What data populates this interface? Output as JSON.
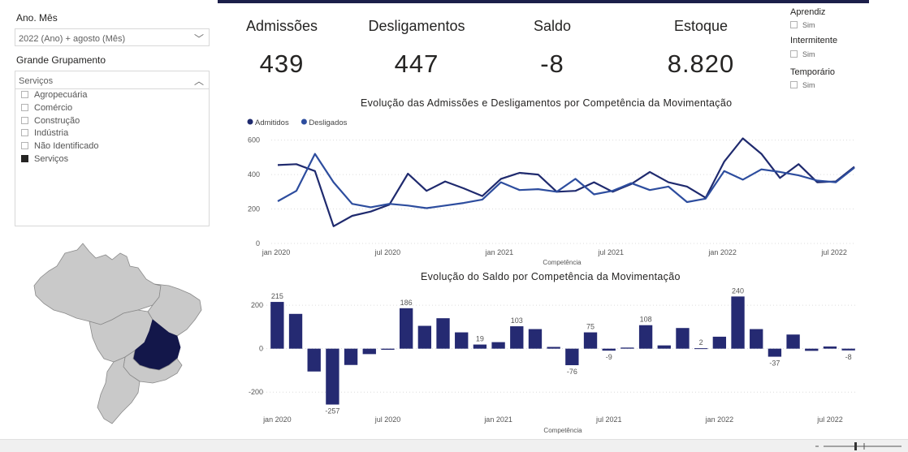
{
  "filters": {
    "month_label": "Ano. Mês",
    "month_value": "2022 (Ano) + agosto (Mês)",
    "group_label": "Grande Grupamento",
    "group_value": "Serviços",
    "group_options": [
      {
        "label": "Agropecuária",
        "checked": false
      },
      {
        "label": "Comércio",
        "checked": false
      },
      {
        "label": "Construção",
        "checked": false
      },
      {
        "label": "Indústria",
        "checked": false
      },
      {
        "label": "Não Identificado",
        "checked": false
      },
      {
        "label": "Serviços",
        "checked": true
      }
    ]
  },
  "kpis": {
    "admissoes_label": "Admissões",
    "admissoes_value": "439",
    "desligamentos_label": "Desligamentos",
    "desligamentos_value": "447",
    "saldo_label": "Saldo",
    "saldo_value": "-8",
    "estoque_label": "Estoque",
    "estoque_value": "8.820"
  },
  "slicers": {
    "aprendiz": "Aprendiz",
    "aprendiz_opt": "Sim",
    "intermitente": "Intermitente",
    "intermitente_opt": "Sim",
    "temporario": "Temporário",
    "temporario_opt": "Sim"
  },
  "map": {
    "highlight_color": "#13174a",
    "base_color": "#c8c8c8"
  },
  "colors": {
    "admitidos": "#1f2a6e",
    "desligados": "#2d4d9e",
    "bar": "#252a72"
  },
  "chart_data": [
    {
      "type": "line",
      "title": "Evolução das Admissões e Desligamentos por Competência da Movimentação",
      "xlabel": "Competência",
      "ylabel": "",
      "x_ticks": [
        "jan 2020",
        "jul 2020",
        "jan 2021",
        "jul 2021",
        "jan 2022",
        "jul 2022"
      ],
      "y_ticks": [
        "0",
        "200",
        "400",
        "600"
      ],
      "ylim": [
        0,
        650
      ],
      "legend_position": "top-left",
      "series": [
        {
          "name": "Admitidos",
          "values": [
            455,
            460,
            420,
            100,
            160,
            185,
            225,
            405,
            305,
            360,
            320,
            275,
            375,
            410,
            400,
            300,
            305,
            355,
            300,
            345,
            415,
            355,
            330,
            265,
            475,
            610,
            520,
            380,
            460,
            355,
            360,
            445
          ]
        },
        {
          "name": "Desligados",
          "values": [
            245,
            305,
            520,
            355,
            230,
            210,
            230,
            220,
            205,
            220,
            235,
            255,
            355,
            310,
            315,
            300,
            375,
            285,
            305,
            350,
            310,
            330,
            240,
            260,
            420,
            370,
            430,
            415,
            395,
            365,
            355,
            440
          ]
        }
      ]
    },
    {
      "type": "bar",
      "title": "Evolução do Saldo por Competência da Movimentação",
      "xlabel": "Competência",
      "ylabel": "",
      "x_ticks": [
        "jan 2020",
        "jul 2020",
        "jan 2021",
        "jul 2021",
        "jan 2022",
        "jul 2022"
      ],
      "y_ticks": [
        "-200",
        "0",
        "200"
      ],
      "ylim": [
        -270,
        260
      ],
      "values": [
        215,
        160,
        -105,
        -257,
        -75,
        -25,
        -5,
        186,
        105,
        140,
        75,
        19,
        30,
        103,
        90,
        8,
        -76,
        75,
        -9,
        5,
        108,
        15,
        95,
        2,
        55,
        240,
        90,
        -37,
        65,
        -10,
        10,
        -8
      ],
      "data_labels": [
        {
          "index": 0,
          "text": "215"
        },
        {
          "index": 3,
          "text": "-257"
        },
        {
          "index": 7,
          "text": "186"
        },
        {
          "index": 11,
          "text": "19"
        },
        {
          "index": 13,
          "text": "103"
        },
        {
          "index": 16,
          "text": "-76"
        },
        {
          "index": 17,
          "text": "75"
        },
        {
          "index": 18,
          "text": "-9"
        },
        {
          "index": 20,
          "text": "108"
        },
        {
          "index": 23,
          "text": "2"
        },
        {
          "index": 25,
          "text": "240"
        },
        {
          "index": 27,
          "text": "-37"
        },
        {
          "index": 31,
          "text": "-8"
        }
      ]
    }
  ]
}
